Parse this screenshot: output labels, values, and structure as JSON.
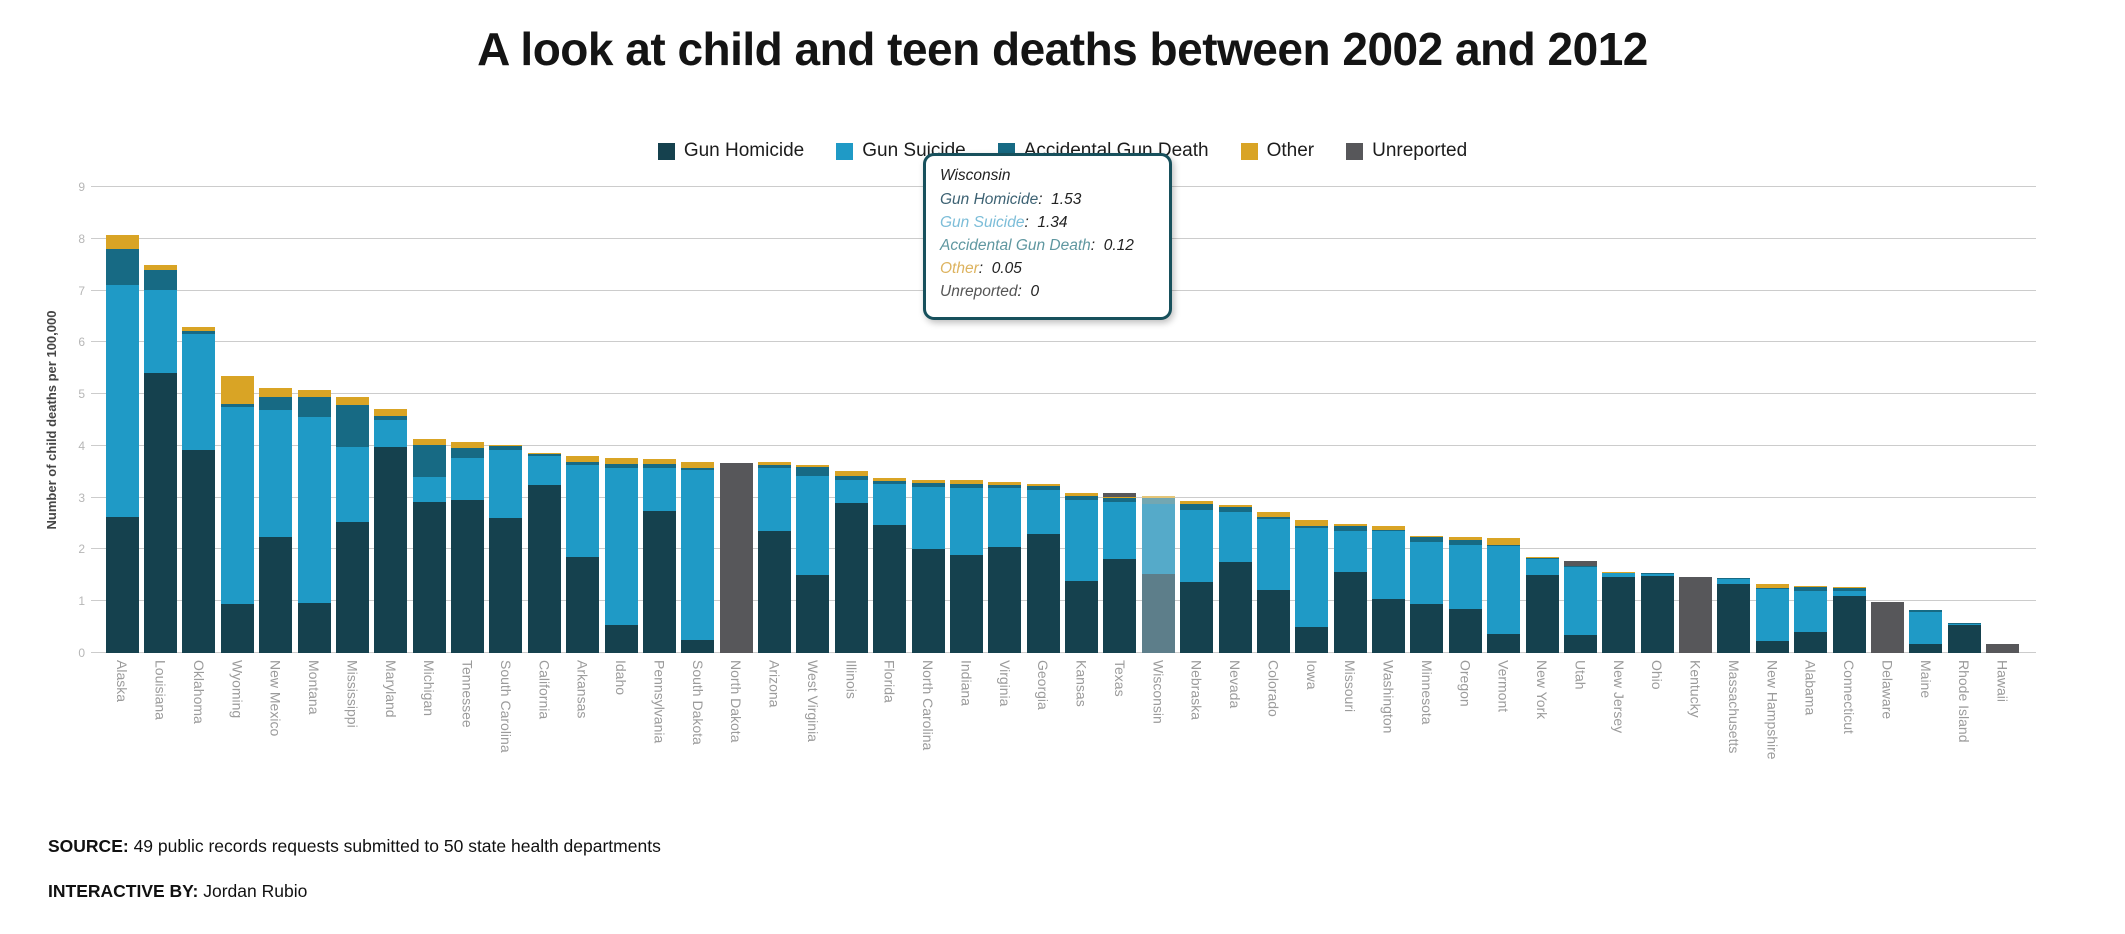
{
  "title": "A look at child and teen deaths between 2002 and 2012",
  "legend": {
    "items": [
      {
        "label": "Gun Homicide",
        "color": "#15414e"
      },
      {
        "label": "Gun Suicide",
        "color": "#1f9ac6"
      },
      {
        "label": "Accidental Gun Death",
        "color": "#176a84"
      },
      {
        "label": "Other",
        "color": "#d9a425"
      },
      {
        "label": "Unreported",
        "color": "#57575a"
      }
    ]
  },
  "y_axis": {
    "label": "Number of child deaths per 100,000",
    "ticks": [
      0,
      1,
      2,
      3,
      4,
      5,
      6,
      7,
      8,
      9
    ]
  },
  "tooltip": {
    "state": "Wisconsin",
    "rows": [
      {
        "label": "Gun Homicide",
        "value": "1.53",
        "color": "#3d6273"
      },
      {
        "label": "Gun Suicide",
        "value": "1.34",
        "color": "#7cbdd8"
      },
      {
        "label": "Accidental Gun Death",
        "value": "0.12",
        "color": "#5f97a0"
      },
      {
        "label": "Other",
        "value": "0.05",
        "color": "#ddb35f"
      },
      {
        "label": "Unreported",
        "value": "0",
        "color": "#555555"
      }
    ]
  },
  "footer": {
    "source_label": "SOURCE:",
    "source_text": " 49 public records requests submitted to 50 state health departments",
    "credit_label": "INTERACTIVE BY:",
    "credit_text": " Jordan Rubio"
  },
  "chart_data": {
    "type": "bar",
    "stacked": true,
    "title": "A look at child and teen deaths between 2002 and 2012",
    "xlabel": "",
    "ylabel": "Number of child deaths per 100,000",
    "ylim": [
      0,
      9
    ],
    "grid": true,
    "legend_position": "top",
    "highlight_category": "Wisconsin",
    "highlight_colors": {
      "Gun Homicide": "#5d7e8a",
      "Gun Suicide": "#55aac9",
      "Accidental Gun Death": "#73a7b2",
      "Other": "#e4c577",
      "Unreported": "#9a9a9a"
    },
    "categories": [
      "Alaska",
      "Louisiana",
      "Oklahoma",
      "Wyoming",
      "New Mexico",
      "Montana",
      "Mississippi",
      "Maryland",
      "Michigan",
      "Tennessee",
      "South Carolina",
      "California",
      "Arkansas",
      "Idaho",
      "Pennsylvania",
      "South Dakota",
      "North Dakota",
      "Arizona",
      "West Virginia",
      "Illinois",
      "Florida",
      "North Carolina",
      "Indiana",
      "Virginia",
      "Georgia",
      "Kansas",
      "Texas",
      "Wisconsin",
      "Nebraska",
      "Nevada",
      "Colorado",
      "Iowa",
      "Missouri",
      "Washington",
      "Minnesota",
      "Oregon",
      "Vermont",
      "New York",
      "Utah",
      "New Jersey",
      "Ohio",
      "Kentucky",
      "Massachusetts",
      "New Hampshire",
      "Alabama",
      "Connecticut",
      "Delaware",
      "Maine",
      "Rhode Island",
      "Hawaii"
    ],
    "series": [
      {
        "name": "Gun Homicide",
        "color": "#15414e",
        "values": [
          2.63,
          5.4,
          3.92,
          0.95,
          2.24,
          0.96,
          2.53,
          3.98,
          2.92,
          2.95,
          2.6,
          3.24,
          1.85,
          0.55,
          2.75,
          0.25,
          0,
          2.35,
          1.51,
          2.9,
          2.47,
          2.0,
          1.9,
          2.05,
          2.3,
          1.4,
          1.82,
          1.53,
          1.37,
          1.76,
          1.21,
          0.5,
          1.56,
          1.05,
          0.95,
          0.86,
          0.37,
          1.5,
          0.34,
          1.47,
          1.48,
          0,
          1.34,
          0.24,
          0.41,
          1.1,
          0,
          0.18,
          0.55,
          0
        ]
      },
      {
        "name": "Gun Suicide",
        "color": "#1f9ac6",
        "values": [
          4.48,
          1.61,
          2.25,
          3.8,
          2.45,
          3.6,
          1.45,
          0.52,
          0.48,
          0.82,
          1.33,
          0.56,
          1.78,
          3.02,
          0.82,
          3.28,
          0,
          1.23,
          1.9,
          0.45,
          0.8,
          1.2,
          1.28,
          1.13,
          0.85,
          1.55,
          1.1,
          1.34,
          1.4,
          0.96,
          1.38,
          1.92,
          0.8,
          1.3,
          1.2,
          1.22,
          1.7,
          0.32,
          1.33,
          0.07,
          0.04,
          0,
          0.09,
          1.0,
          0.78,
          0.1,
          0,
          0.62,
          0.02,
          0
        ]
      },
      {
        "name": "Accidental Gun Death",
        "color": "#176a84",
        "values": [
          0.7,
          0.39,
          0.05,
          0.05,
          0.26,
          0.39,
          0.81,
          0.08,
          0.61,
          0.19,
          0.06,
          0.04,
          0.05,
          0.08,
          0.08,
          0.05,
          0,
          0.05,
          0.18,
          0.07,
          0.06,
          0.08,
          0.08,
          0.07,
          0.07,
          0.08,
          0.08,
          0.12,
          0.1,
          0.1,
          0.04,
          0.04,
          0.1,
          0.03,
          0.1,
          0.1,
          0.02,
          0.02,
          0.01,
          0.01,
          0.02,
          0,
          0.01,
          0.01,
          0.08,
          0.05,
          0,
          0.03,
          0.01,
          0
        ]
      },
      {
        "name": "Other",
        "color": "#d9a425",
        "values": [
          0.26,
          0.1,
          0.08,
          0.55,
          0.17,
          0.13,
          0.16,
          0.14,
          0.13,
          0.12,
          0.03,
          0.02,
          0.12,
          0.12,
          0.1,
          0.12,
          0,
          0.05,
          0.05,
          0.1,
          0.05,
          0.07,
          0.08,
          0.05,
          0.05,
          0.07,
          0.02,
          0.05,
          0.06,
          0.03,
          0.09,
          0.1,
          0.04,
          0.07,
          0.02,
          0.06,
          0.13,
          0.01,
          0.01,
          0.01,
          0.01,
          0,
          0.01,
          0.08,
          0.02,
          0.02,
          0,
          0.01,
          0,
          0
        ]
      },
      {
        "name": "Unreported",
        "color": "#57575a",
        "values": [
          0,
          0,
          0,
          0,
          0,
          0,
          0,
          0,
          0,
          0,
          0,
          0,
          0,
          0,
          0,
          0,
          3.68,
          0,
          0,
          0,
          0,
          0,
          0,
          0,
          0,
          0,
          0.08,
          0,
          0,
          0,
          0,
          0,
          0,
          0,
          0,
          0,
          0,
          0,
          0.08,
          0,
          0,
          1.47,
          0,
          0,
          0,
          0,
          0.99,
          0,
          0,
          0.18
        ]
      }
    ]
  }
}
